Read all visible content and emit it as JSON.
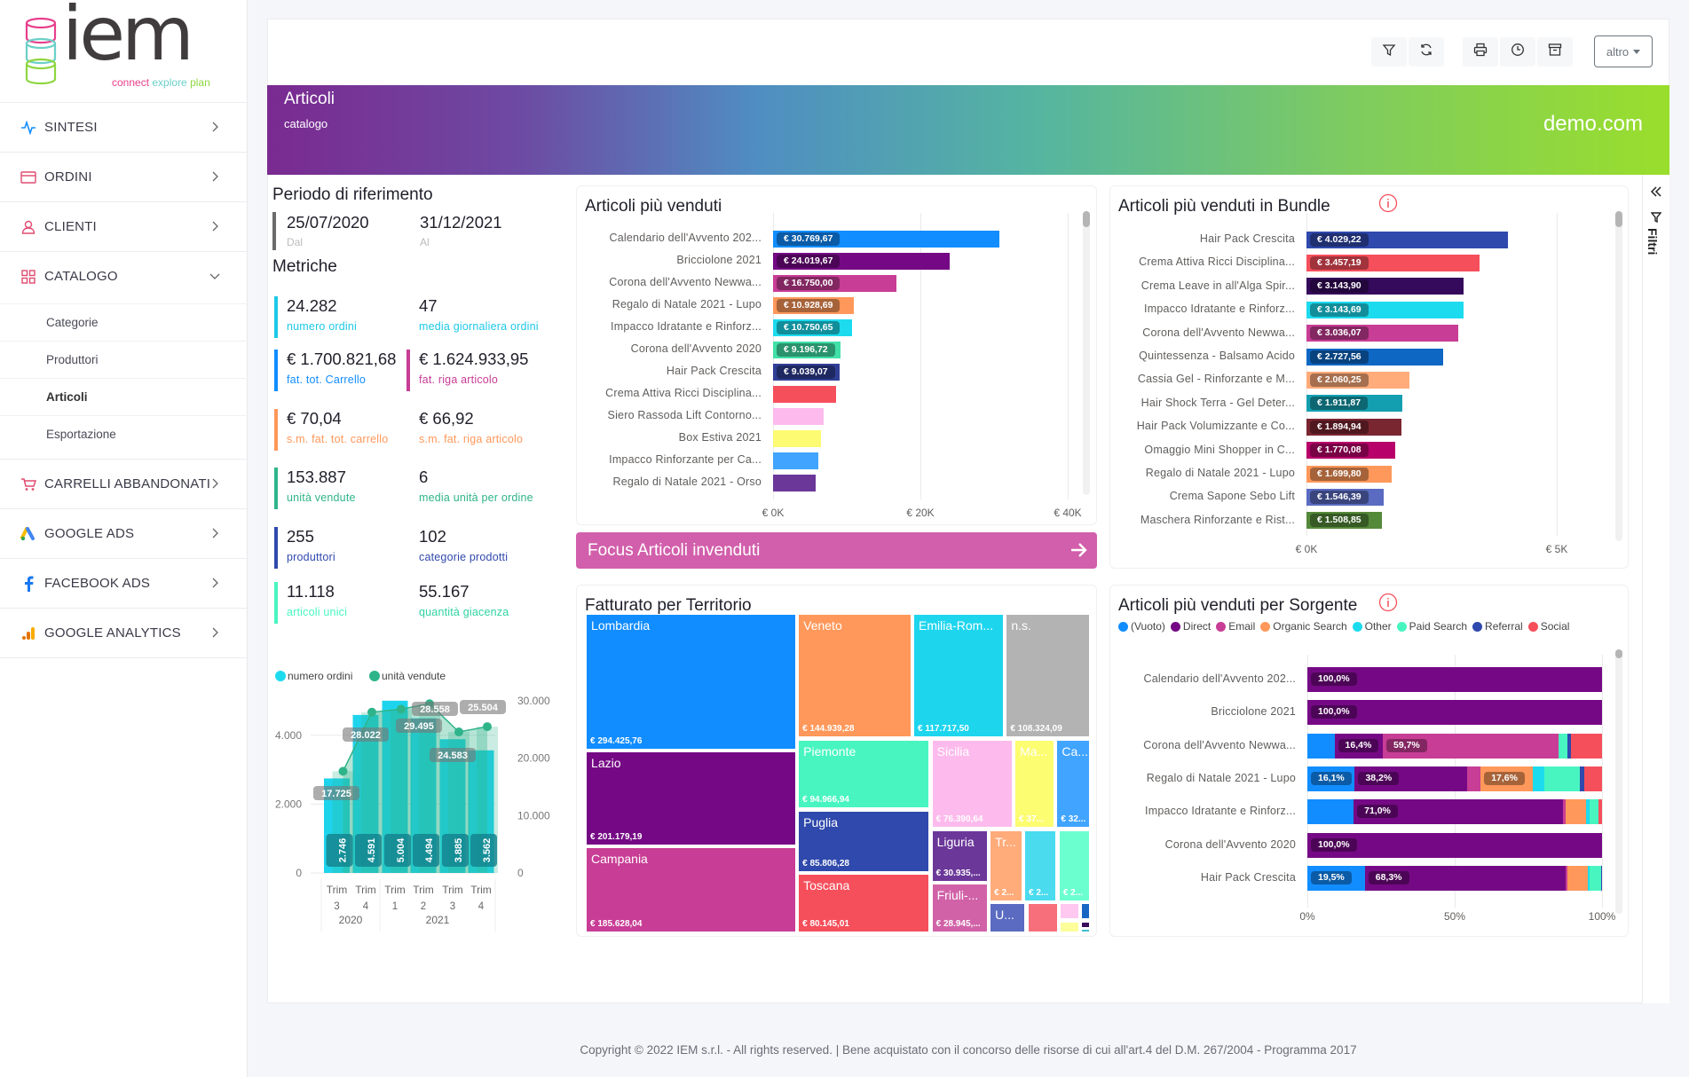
{
  "logo": {
    "text": "iem",
    "tagline": [
      "connect",
      "explore",
      "plan"
    ],
    "colors": [
      "#e83e8c",
      "#6acfc7",
      "#8dd63f"
    ]
  },
  "sidebar": {
    "items": [
      {
        "label": "SINTESI",
        "icon": "pulse-icon",
        "color": "#118dff"
      },
      {
        "label": "ORDINI",
        "icon": "card-icon",
        "color": "#e04a70"
      },
      {
        "label": "CLIENTI",
        "icon": "user-icon",
        "color": "#e04a70"
      },
      {
        "label": "CATALOGO",
        "icon": "grid-icon",
        "color": "#e04a70",
        "expanded": true
      },
      {
        "label": "CARRELLI ABBANDONATI",
        "icon": "cart-icon",
        "color": "#e04a70"
      },
      {
        "label": "GOOGLE ADS",
        "icon": "google-ads-icon",
        "color": "#4285f4"
      },
      {
        "label": "FACEBOOK ADS",
        "icon": "facebook-icon",
        "color": "#1877f2"
      },
      {
        "label": "GOOGLE ANALYTICS",
        "icon": "analytics-icon",
        "color": "#f9ab00"
      }
    ],
    "subitems": [
      {
        "label": "Categorie"
      },
      {
        "label": "Produttori"
      },
      {
        "label": "Articoli",
        "active": true
      },
      {
        "label": "Esportazione"
      }
    ]
  },
  "toolbar": {
    "buttons": [
      "filter-icon",
      "refresh-icon",
      "print-icon",
      "clock-icon",
      "archive-icon"
    ],
    "altro": "altro"
  },
  "banner": {
    "title": "Articoli",
    "subtitle": "catalogo",
    "site": "demo.com"
  },
  "filters_rail": {
    "label": "Filtri"
  },
  "period": {
    "title": "Periodo di riferimento",
    "from": "25/07/2020",
    "from_label": "Dal",
    "to": "31/12/2021",
    "to_label": "Al"
  },
  "metrics": {
    "title": "Metriche",
    "rows": [
      [
        {
          "value": "24.282",
          "label": "numero ordini",
          "color": "#1ec8e8",
          "bar": true
        },
        {
          "value": "47",
          "label": "media giornaliera ordini",
          "color": "#1ec8e8",
          "bar": false
        }
      ],
      [
        {
          "value": "€ 1.700.821,68",
          "label": "fat. tot. Carrello",
          "color": "#118dff",
          "bar": true
        },
        {
          "value": "€ 1.624.933,95",
          "label": "fat. riga articolo",
          "color": "#c83d95",
          "bar": true
        }
      ],
      [
        {
          "value": "€ 70,04",
          "label": "s.m. fat. tot. carrello",
          "color": "#ff985a",
          "bar": true
        },
        {
          "value": "€ 66,92",
          "label": "s.m. fat. riga articolo",
          "color": "#ff985a",
          "bar": false
        }
      ],
      [
        {
          "value": "153.887",
          "label": "unità vendute",
          "color": "#2fb48a",
          "bar": true
        },
        {
          "value": "6",
          "label": "media unità per ordine",
          "color": "#2fb48a",
          "bar": false
        }
      ],
      [
        {
          "value": "255",
          "label": "produttori",
          "color": "#3049ad",
          "bar": true
        },
        {
          "value": "102",
          "label": "categorie prodotti",
          "color": "#3049ad",
          "bar": false
        }
      ],
      [
        {
          "value": "11.118",
          "label": "articoli unici",
          "color": "#48f5c0",
          "bar": true
        },
        {
          "value": "55.167",
          "label": "quantità giacenza",
          "color": "#2fd3a0",
          "bar": false
        }
      ]
    ]
  },
  "chart_data": [
    {
      "type": "bar+line",
      "legend": [
        "numero ordini",
        "unità vendute"
      ],
      "legend_colors": [
        "#1ddbee",
        "#2fb48a"
      ],
      "categories": [
        [
          "Trim",
          "3"
        ],
        [
          "Trim",
          "4"
        ],
        [
          "Trim",
          "1"
        ],
        [
          "Trim",
          "2"
        ],
        [
          "Trim",
          "3"
        ],
        [
          "Trim",
          "4"
        ]
      ],
      "years": [
        {
          "label": "2020",
          "span": 2
        },
        {
          "label": "2021",
          "span": 4
        }
      ],
      "bars": {
        "name": "numero ordini",
        "values": [
          2746,
          4591,
          5004,
          4494,
          3885,
          3562
        ],
        "labels": [
          "2.746",
          "4.591",
          "5.004",
          "4.494",
          "3.885",
          "3.562"
        ]
      },
      "line": {
        "name": "unità vendute",
        "values": [
          17725,
          28022,
          28558,
          29495,
          24583,
          25504
        ],
        "labels": [
          "17.725",
          "28.022",
          "28.558",
          "29.495",
          "24.583",
          "25.504"
        ]
      },
      "y_left": {
        "range": [
          0,
          5000
        ],
        "ticks": [
          "0",
          "2.000",
          "4.000"
        ],
        "tick_values": [
          0,
          2000,
          4000
        ]
      },
      "y_right": {
        "range": [
          0,
          30000
        ],
        "ticks": [
          "0",
          "10.000",
          "20.000",
          "30.000"
        ],
        "tick_values": [
          0,
          10000,
          20000,
          30000
        ]
      },
      "grid": true
    },
    {
      "type": "bar",
      "orientation": "horizontal",
      "title": "Articoli più venduti",
      "categories": [
        "Calendario dell'Avvento 202...",
        "Bricciolone 2021",
        "Corona dell'Avvento Newwa...",
        "Regalo di Natale 2021 - Lupo",
        "Impacco Idratante e Rinforz...",
        "Corona dell'Avvento 2020",
        "Hair Pack Crescita",
        "Crema Attiva Ricci Disciplina...",
        "Siero Rassoda Lift Contorno...",
        "Box Estiva 2021",
        "Impacco Rinforzante per Ca...",
        "Regalo di Natale 2021 - Orso"
      ],
      "values": [
        30769.67,
        24019.67,
        16750.0,
        10928.69,
        10750.65,
        9196.72,
        9039.07,
        8600,
        6900,
        6500,
        6200,
        5800
      ],
      "labels": [
        "€ 30.769,67",
        "€ 24.019,67",
        "€ 16.750,00",
        "€ 10.928,69",
        "€ 10.750,65",
        "€ 9.196,72",
        "€ 9.039,07",
        "",
        "",
        "",
        "",
        ""
      ],
      "colors": [
        "#118dff",
        "#750985",
        "#c83d95",
        "#ff985a",
        "#1ddbee",
        "#41e0a8",
        "#303f95",
        "#f64f5c",
        "#fdbbed",
        "#fcfb72",
        "#41a4ff",
        "#6b3799"
      ],
      "xlim": [
        0,
        40000
      ],
      "ticks": [
        "€ 0K",
        "€ 20K",
        "€ 40K"
      ],
      "tick_values": [
        0,
        20000,
        40000
      ]
    },
    {
      "type": "bar",
      "orientation": "horizontal",
      "title": "Articoli più venduti in Bundle",
      "categories": [
        "Hair Pack Crescita",
        "Crema Attiva Ricci Disciplina...",
        "Crema Leave in all'Alga Spir...",
        "Impacco Idratante e Rinforz...",
        "Corona dell'Avvento Newwa...",
        "Quintessenza - Balsamo Acido",
        "Cassia Gel - Rinforzante e M...",
        "Hair Shock Terra - Gel Deter...",
        "Hair Pack Volumizzante e Co...",
        "Omaggio Mini Shopper in C...",
        "Regalo di Natale 2021 - Lupo",
        "Crema Sapone Sebo Lift",
        "Maschera Rinforzante e Rist..."
      ],
      "values": [
        4029.22,
        3457.19,
        3143.9,
        3143.69,
        3036.07,
        2727.56,
        2060.25,
        1911.87,
        1894.94,
        1770.08,
        1699.8,
        1546.39,
        1508.85
      ],
      "labels": [
        "€ 4.029,22",
        "€ 3.457,19",
        "€ 3.143,90",
        "€ 3.143,69",
        "€ 3.036,07",
        "€ 2.727,56",
        "€ 2.060,25",
        "€ 1.911,87",
        "€ 1.894,94",
        "€ 1.770,08",
        "€ 1.699,80",
        "€ 1.546,39",
        "€ 1.508,85"
      ],
      "colors": [
        "#3049ad",
        "#f64f5c",
        "#350a5c",
        "#1ddbee",
        "#c83d95",
        "#0f67c4",
        "#ffab7a",
        "#139fb0",
        "#7a2631",
        "#b8006a",
        "#ff985a",
        "#5a6bc1",
        "#55893a"
      ],
      "xlim": [
        0,
        5000
      ],
      "ticks": [
        "€ 0K",
        "€ 5K"
      ],
      "tick_values": [
        0,
        5000
      ]
    },
    {
      "type": "treemap",
      "title": "Fatturato per Territorio",
      "items": [
        {
          "name": "Lombardia",
          "label": "€ 294.425,76",
          "value": 294425.76,
          "color": "#118dff"
        },
        {
          "name": "Lazio",
          "label": "€ 201.179,19",
          "value": 201179.19,
          "color": "#750985"
        },
        {
          "name": "Campania",
          "label": "€ 185.628,04",
          "value": 185628.04,
          "color": "#c83d95"
        },
        {
          "name": "Veneto",
          "label": "€ 144.939,28",
          "value": 144939.28,
          "color": "#ff985a"
        },
        {
          "name": "Emilia-Rom...",
          "label": "€ 117.717,50",
          "value": 117717.5,
          "color": "#1ed5ee"
        },
        {
          "name": "n.s.",
          "label": "€ 108.324,09",
          "value": 108324.09,
          "color": "#b3b3b3"
        },
        {
          "name": "Piemonte",
          "label": "€ 94.966,94",
          "value": 94966.94,
          "color": "#48f5c0"
        },
        {
          "name": "Puglia",
          "label": "€ 85.806,28",
          "value": 85806.28,
          "color": "#3049ad"
        },
        {
          "name": "Toscana",
          "label": "€ 80.145,01",
          "value": 80145.01,
          "color": "#f64f5c"
        },
        {
          "name": "Sicilia",
          "label": "€ 76.390,64",
          "value": 76390.64,
          "color": "#fdbbed"
        },
        {
          "name": "Ma...",
          "label": "€ 37...",
          "color": "#fdfd72"
        },
        {
          "name": "Ca...",
          "label": "€ 32...",
          "color": "#41a4ff"
        },
        {
          "name": "Liguria",
          "label": "€ 30.935,...",
          "color": "#6b3799"
        },
        {
          "name": "Friuli-...",
          "label": "€ 28.945,...",
          "color": "#d162a8"
        },
        {
          "name": "Tr...",
          "label": "€ 2...",
          "color": "#ffab7a"
        },
        {
          "name": "",
          "label": "€ 2...",
          "color": "#4adbee"
        },
        {
          "name": "",
          "label": "€ 2...",
          "color": "#6bffcf"
        },
        {
          "name": "U...",
          "label": "",
          "color": "#5a6bc1"
        },
        {
          "name": "",
          "label": "",
          "color": "#f66f7a"
        },
        {
          "name": "",
          "label": "",
          "color": "#ffc8f0"
        },
        {
          "name": "",
          "label": "",
          "color": "#1866c4"
        },
        {
          "name": "",
          "label": "",
          "color": "#fdfd9a"
        },
        {
          "name": "",
          "label": "",
          "color": "#3a0a5c"
        },
        {
          "name": "",
          "label": "",
          "color": "#3fbfcf"
        }
      ]
    },
    {
      "type": "bar",
      "orientation": "horizontal",
      "stacked": "100%",
      "title": "Articoli più venduti per Sorgente",
      "legend": [
        "(Vuoto)",
        "Direct",
        "Email",
        "Organic Search",
        "Other",
        "Paid Search",
        "Referral",
        "Social"
      ],
      "colors": [
        "#118dff",
        "#750985",
        "#c83d95",
        "#ff985a",
        "#1ddbee",
        "#48f5c0",
        "#3049ad",
        "#f64f5c"
      ],
      "categories": [
        "Calendario dell'Avvento 202...",
        "Bricciolone 2021",
        "Corona dell'Avvento Newwa...",
        "Regalo di Natale 2021 - Lupo",
        "Impacco Idratante e Rinforz...",
        "Corona dell'Avvento 2020",
        "Hair Pack Crescita"
      ],
      "series_values": [
        [
          0,
          100,
          0,
          0,
          0,
          0,
          0,
          0
        ],
        [
          0,
          100,
          0,
          0,
          0,
          0,
          0,
          0
        ],
        [
          9.2,
          16.4,
          59.7,
          0,
          0,
          3.0,
          1.3,
          10.4
        ],
        [
          16.1,
          38.2,
          4.5,
          17.6,
          4.0,
          12.1,
          1.6,
          5.9
        ],
        [
          15.7,
          71.0,
          0.9,
          7.1,
          1.2,
          3.0,
          0,
          1.1
        ],
        [
          0,
          100,
          0,
          0,
          0,
          0,
          0,
          0
        ],
        [
          19.5,
          68.3,
          0.6,
          6.7,
          0.8,
          3.8,
          0.3,
          0
        ]
      ],
      "ticks": [
        "0%",
        "50%",
        "100%"
      ],
      "tick_values": [
        0,
        50,
        100
      ]
    }
  ],
  "focus_button": {
    "label": "Focus Articoli invenduti"
  },
  "footer": {
    "text": "Copyright © 2022 IEM s.r.l. - All rights reserved. | Bene acquistato con il concorso delle risorse di cui all'art.4 del D.M. 267/2004 - Programma 2017"
  }
}
